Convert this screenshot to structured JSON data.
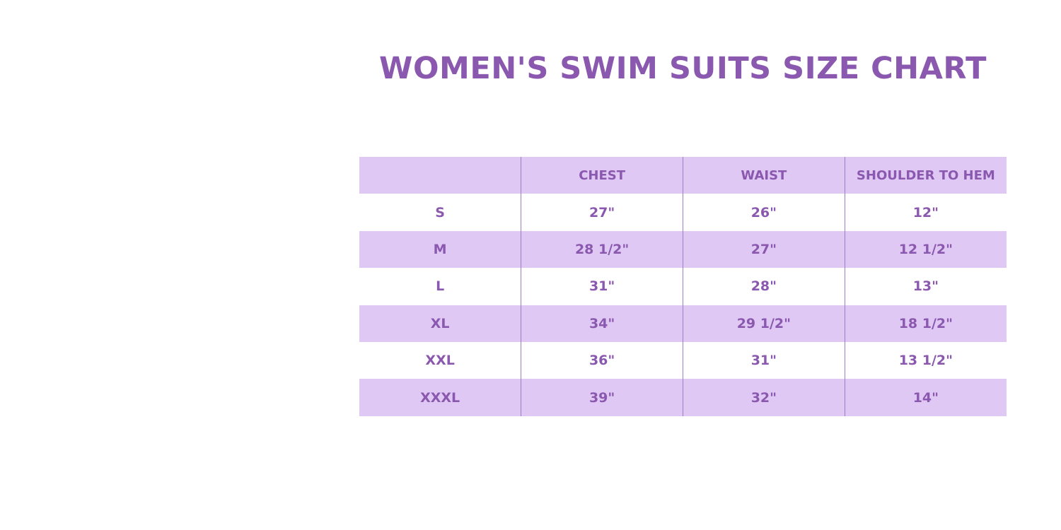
{
  "title": "WOMEN'S SWIM SUITS SIZE CHART",
  "table": {
    "header": [
      "CHEST",
      "WAIST",
      "SHOULDER TO HEM"
    ],
    "rows": [
      [
        "S",
        "27\"",
        "26\"",
        "12\""
      ],
      [
        "M",
        "28 1/2\"",
        "27\"",
        "12 1/2\""
      ],
      [
        "L",
        "31\"",
        "28\"",
        "13\""
      ],
      [
        "XL",
        "34\"",
        "29 1/2\"",
        "18 1/2\""
      ],
      [
        "XXL",
        "36\"",
        "31\"",
        "13 1/2\""
      ],
      [
        "XXXL",
        "39\"",
        "32\"",
        "14\""
      ]
    ]
  }
}
